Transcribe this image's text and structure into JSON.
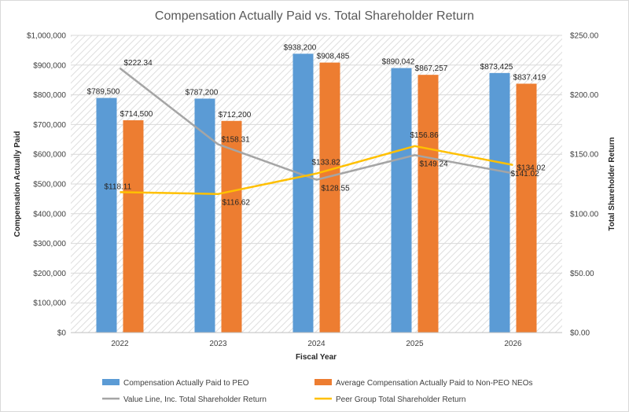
{
  "chart_data": {
    "type": "bar",
    "title": "Compensation Actually Paid vs. Total Shareholder Return",
    "xlabel": "Fiscal Year",
    "ylabel_left": "Compensation Actually Paid",
    "ylabel_right": "Total Shareholder Return",
    "categories": [
      "2022",
      "2023",
      "2024",
      "2025",
      "2026"
    ],
    "ylim_left": [
      0,
      1000000
    ],
    "ylim_right": [
      0,
      250
    ],
    "y_ticks_left": [
      "$0",
      "$100,000",
      "$200,000",
      "$300,000",
      "$400,000",
      "$500,000",
      "$600,000",
      "$700,000",
      "$800,000",
      "$900,000",
      "$1,000,000"
    ],
    "y_ticks_right": [
      "$0.00",
      "$50.00",
      "$100.00",
      "$150.00",
      "$200.00",
      "$250.00"
    ],
    "bar_series": [
      {
        "name": "Compensation Actually Paid to PEO",
        "color": "#5B9BD5",
        "values": [
          789500,
          787200,
          938200,
          890042,
          873425
        ],
        "labels": [
          "$789,500",
          "$787,200",
          "$938,200",
          "$890,042",
          "$873,425"
        ]
      },
      {
        "name": "Average Compensation Actually Paid to Non-PEO NEOs",
        "color": "#ED7D31",
        "values": [
          714500,
          712200,
          908485,
          867257,
          837419
        ],
        "labels": [
          "$714,500",
          "$712,200",
          "$908,485",
          "$867,257",
          "$837,419"
        ]
      }
    ],
    "line_series": [
      {
        "name": "Value Line, Inc. Total Shareholder Return",
        "color": "#A5A5A5",
        "axis": "right",
        "values": [
          222.34,
          158.31,
          128.55,
          149.24,
          134.02
        ],
        "labels": [
          "$222.34",
          "$158.31",
          "$128.55",
          "$149.24",
          "$134.02"
        ]
      },
      {
        "name": "Peer Group Total Shareholder Return",
        "color": "#FFC000",
        "axis": "right",
        "values": [
          118.11,
          116.62,
          133.82,
          156.86,
          141.02
        ],
        "labels": [
          "$118.11",
          "$116.62",
          "$133.82",
          "$156.86",
          "$141.02"
        ]
      }
    ],
    "grid": true,
    "legend_position": "bottom"
  }
}
